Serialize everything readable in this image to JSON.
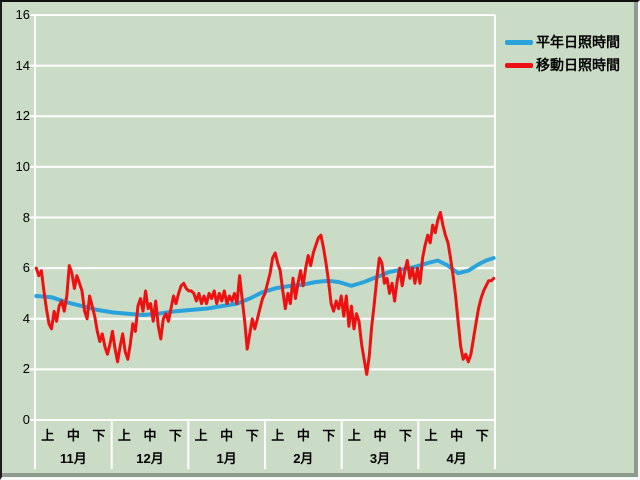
{
  "window": {
    "background_color": "#cbdcc6",
    "gridline_color": "#ffffff",
    "text_color": "#000000"
  },
  "chart_data": {
    "type": "line",
    "title": "",
    "legend_position": "top-right",
    "grid": "horizontal",
    "y_axis": {
      "min": 0,
      "max": 16,
      "tick_step": 2,
      "ticks": [
        0,
        2,
        4,
        6,
        8,
        10,
        12,
        14,
        16
      ]
    },
    "x_axis": {
      "months": [
        {
          "label": "11月"
        },
        {
          "label": "12月"
        },
        {
          "label": "1月"
        },
        {
          "label": "2月"
        },
        {
          "label": "3月"
        },
        {
          "label": "4月"
        }
      ],
      "decade_labels": [
        "上",
        "中",
        "下"
      ]
    },
    "x_total_days": 181,
    "series": [
      {
        "name": "平年日照時間",
        "color": "#2aa3dc",
        "stroke_width": 4,
        "points": [
          [
            0,
            4.9
          ],
          [
            6,
            4.85
          ],
          [
            12,
            4.65
          ],
          [
            18,
            4.5
          ],
          [
            24,
            4.35
          ],
          [
            30,
            4.25
          ],
          [
            36,
            4.2
          ],
          [
            42,
            4.15
          ],
          [
            48,
            4.2
          ],
          [
            55,
            4.3
          ],
          [
            61,
            4.35
          ],
          [
            67,
            4.4
          ],
          [
            73,
            4.5
          ],
          [
            79,
            4.6
          ],
          [
            84,
            4.8
          ],
          [
            89,
            5.05
          ],
          [
            94,
            5.2
          ],
          [
            100,
            5.3
          ],
          [
            105,
            5.35
          ],
          [
            110,
            5.45
          ],
          [
            115,
            5.5
          ],
          [
            119,
            5.45
          ],
          [
            124,
            5.3
          ],
          [
            129,
            5.45
          ],
          [
            134,
            5.65
          ],
          [
            139,
            5.85
          ],
          [
            144,
            5.95
          ],
          [
            149,
            6.05
          ],
          [
            154,
            6.2
          ],
          [
            158,
            6.3
          ],
          [
            162,
            6.1
          ],
          [
            166,
            5.8
          ],
          [
            170,
            5.9
          ],
          [
            174,
            6.15
          ],
          [
            177,
            6.3
          ],
          [
            180,
            6.4
          ]
        ]
      },
      {
        "name": "移動日照時間",
        "color": "#ee1111",
        "stroke_width": 3,
        "values": [
          6.0,
          5.7,
          5.9,
          5.1,
          4.4,
          3.8,
          3.6,
          4.3,
          3.9,
          4.5,
          4.7,
          4.3,
          4.9,
          6.1,
          5.8,
          5.2,
          5.7,
          5.4,
          5.1,
          4.3,
          4.0,
          4.9,
          4.5,
          4.1,
          3.5,
          3.1,
          3.4,
          2.9,
          2.6,
          3.0,
          3.5,
          2.8,
          2.3,
          2.9,
          3.4,
          2.7,
          2.4,
          3.0,
          3.8,
          3.5,
          4.5,
          4.8,
          4.3,
          5.1,
          4.4,
          4.6,
          3.9,
          4.7,
          3.7,
          3.2,
          4.0,
          4.2,
          3.9,
          4.4,
          4.9,
          4.6,
          5.0,
          5.3,
          5.4,
          5.2,
          5.1,
          5.1,
          5.0,
          4.7,
          5.0,
          4.6,
          4.9,
          4.6,
          5.0,
          4.8,
          5.1,
          4.6,
          5.0,
          4.7,
          5.1,
          4.6,
          4.9,
          4.7,
          5.0,
          4.6,
          5.7,
          4.8,
          3.9,
          2.8,
          3.4,
          4.0,
          3.6,
          4.0,
          4.4,
          4.8,
          5.0,
          5.4,
          5.8,
          6.4,
          6.6,
          6.2,
          5.9,
          5.1,
          4.4,
          5.0,
          4.6,
          5.6,
          4.8,
          5.4,
          5.9,
          5.3,
          6.0,
          6.5,
          6.1,
          6.6,
          6.9,
          7.2,
          7.3,
          6.8,
          6.2,
          5.5,
          4.6,
          4.3,
          4.7,
          4.4,
          4.9,
          4.1,
          4.9,
          3.7,
          4.5,
          3.6,
          4.2,
          3.9,
          3.0,
          2.4,
          1.8,
          2.5,
          3.7,
          4.6,
          5.6,
          6.4,
          6.2,
          5.4,
          5.6,
          5.0,
          5.4,
          4.7,
          5.5,
          6.0,
          5.3,
          5.9,
          6.3,
          5.6,
          6.0,
          5.4,
          6.0,
          5.4,
          6.4,
          6.9,
          7.3,
          7.0,
          7.7,
          7.4,
          7.9,
          8.2,
          7.7,
          7.3,
          7.0,
          6.4,
          5.7,
          4.9,
          3.9,
          2.9,
          2.4,
          2.6,
          2.3,
          2.6,
          3.2,
          3.8,
          4.4,
          4.8,
          5.1,
          5.3,
          5.5,
          5.5,
          5.6
        ]
      }
    ]
  }
}
